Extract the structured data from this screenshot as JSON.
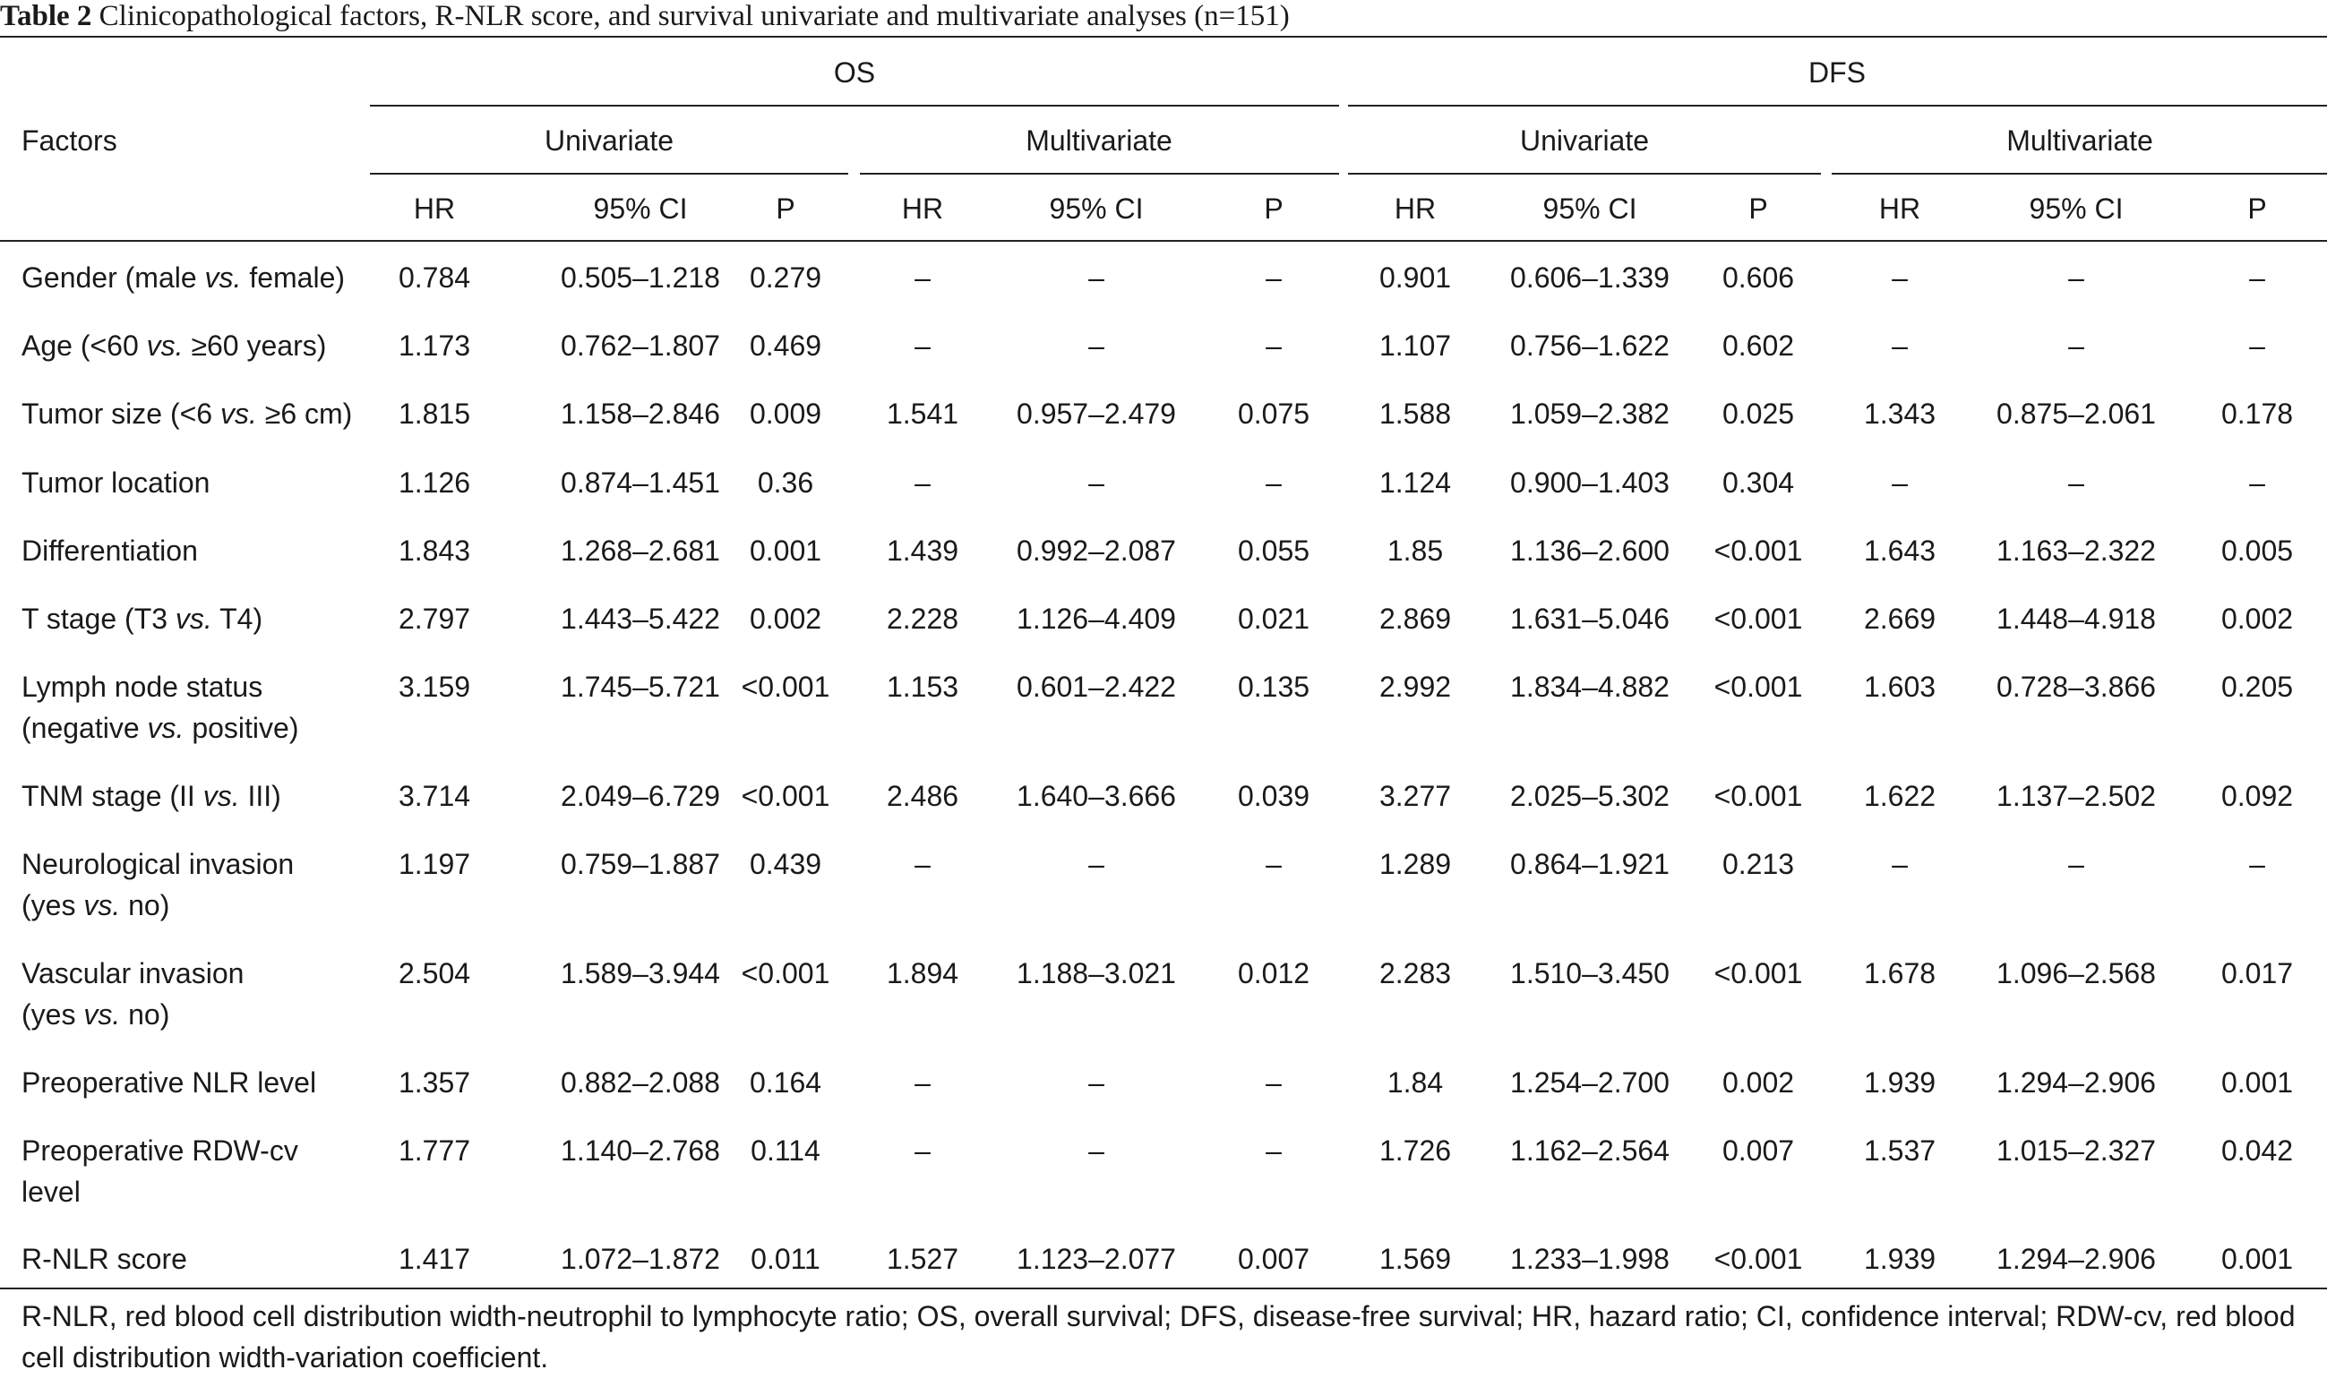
{
  "caption": {
    "label": "Table 2",
    "text": "Clinicopathological factors, R-NLR score, and survival univariate and multivariate analyses (n=151)"
  },
  "header": {
    "factors_label": "Factors",
    "groups": [
      "OS",
      "DFS"
    ],
    "subgroups": [
      "Univariate",
      "Multivariate",
      "Univariate",
      "Multivariate"
    ],
    "columns": [
      "HR",
      "95% CI",
      "P",
      "HR",
      "95% CI",
      "P",
      "HR",
      "95% CI",
      "P",
      "HR",
      "95% CI",
      "P"
    ]
  },
  "rows": [
    {
      "factor": [
        "Gender (male ",
        "vs.",
        " female)"
      ],
      "values": [
        "0.784",
        "0.505–1.218",
        "0.279",
        "–",
        "–",
        "–",
        "0.901",
        "0.606–1.339",
        "0.606",
        "–",
        "–",
        "–"
      ]
    },
    {
      "factor": [
        "Age (<60 ",
        "vs.",
        " ≥60 years)"
      ],
      "values": [
        "1.173",
        "0.762–1.807",
        "0.469",
        "–",
        "–",
        "–",
        "1.107",
        "0.756–1.622",
        "0.602",
        "–",
        "–",
        "–"
      ]
    },
    {
      "factor": [
        "Tumor size (<6 ",
        "vs.",
        " ≥6 cm)"
      ],
      "values": [
        "1.815",
        "1.158–2.846",
        "0.009",
        "1.541",
        "0.957–2.479",
        "0.075",
        "1.588",
        "1.059–2.382",
        "0.025",
        "1.343",
        "0.875–2.061",
        "0.178"
      ]
    },
    {
      "factor": [
        "Tumor location",
        "",
        ""
      ],
      "values": [
        "1.126",
        "0.874–1.451",
        "0.36",
        "–",
        "–",
        "–",
        "1.124",
        "0.900–1.403",
        "0.304",
        "–",
        "–",
        "–"
      ]
    },
    {
      "factor": [
        "Differentiation",
        "",
        ""
      ],
      "values": [
        "1.843",
        "1.268–2.681",
        "0.001",
        "1.439",
        "0.992–2.087",
        "0.055",
        "1.85",
        "1.136–2.600",
        "<0.001",
        "1.643",
        "1.163–2.322",
        "0.005"
      ]
    },
    {
      "factor": [
        "T stage (T3 ",
        "vs.",
        " T4)"
      ],
      "values": [
        "2.797",
        "1.443–5.422",
        "0.002",
        "2.228",
        "1.126–4.409",
        "0.021",
        "2.869",
        "1.631–5.046",
        "<0.001",
        "2.669",
        "1.448–4.918",
        "0.002"
      ]
    },
    {
      "factor": [
        "Lymph node status\n(negative ",
        "vs.",
        " positive)"
      ],
      "values": [
        "3.159",
        "1.745–5.721",
        "<0.001",
        "1.153",
        "0.601–2.422",
        "0.135",
        "2.992",
        "1.834–4.882",
        "<0.001",
        "1.603",
        "0.728–3.866",
        "0.205"
      ]
    },
    {
      "factor": [
        "TNM stage (II ",
        "vs.",
        " III)"
      ],
      "values": [
        "3.714",
        "2.049–6.729",
        "<0.001",
        "2.486",
        "1.640–3.666",
        "0.039",
        "3.277",
        "2.025–5.302",
        "<0.001",
        "1.622",
        "1.137–2.502",
        "0.092"
      ]
    },
    {
      "factor": [
        "Neurological invasion\n(yes ",
        "vs.",
        " no)"
      ],
      "values": [
        "1.197",
        "0.759–1.887",
        "0.439",
        "–",
        "–",
        "–",
        "1.289",
        "0.864–1.921",
        "0.213",
        "–",
        "–",
        "–"
      ]
    },
    {
      "factor": [
        "Vascular invasion\n(yes ",
        "vs.",
        " no)"
      ],
      "values": [
        "2.504",
        "1.589–3.944",
        "<0.001",
        "1.894",
        "1.188–3.021",
        "0.012",
        "2.283",
        "1.510–3.450",
        "<0.001",
        "1.678",
        "1.096–2.568",
        "0.017"
      ]
    },
    {
      "factor": [
        "Preoperative NLR level",
        "",
        ""
      ],
      "values": [
        "1.357",
        "0.882–2.088",
        "0.164",
        "–",
        "–",
        "–",
        "1.84",
        "1.254–2.700",
        "0.002",
        "1.939",
        "1.294–2.906",
        "0.001"
      ]
    },
    {
      "factor": [
        "Preoperative RDW-cv\nlevel",
        "",
        ""
      ],
      "values": [
        "1.777",
        "1.140–2.768",
        "0.114",
        "–",
        "–",
        "–",
        "1.726",
        "1.162–2.564",
        "0.007",
        "1.537",
        "1.015–2.327",
        "0.042"
      ]
    },
    {
      "factor": [
        "R-NLR score",
        "",
        ""
      ],
      "values": [
        "1.417",
        "1.072–1.872",
        "0.011",
        "1.527",
        "1.123–2.077",
        "0.007",
        "1.569",
        "1.233–1.998",
        "<0.001",
        "1.939",
        "1.294–2.906",
        "0.001"
      ]
    }
  ],
  "footnote": "R-NLR, red blood cell distribution width-neutrophil to lymphocyte ratio; OS, overall survival; DFS, disease-free survival; HR, hazard ratio; CI, confidence interval; RDW-cv, red blood cell distribution width-variation coefficient."
}
